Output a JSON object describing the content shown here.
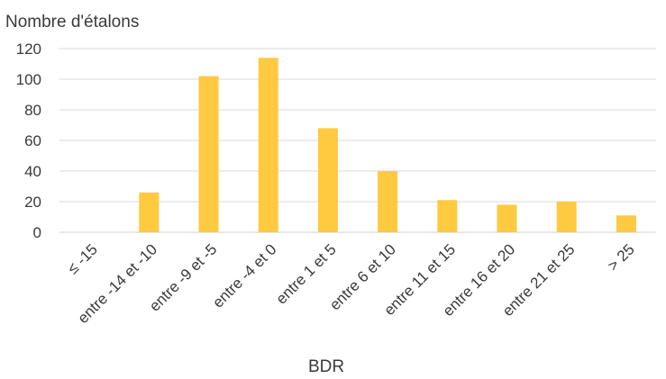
{
  "chart_data": {
    "type": "bar",
    "title": "",
    "ylabel": "Nombre d'étalons",
    "xlabel": "BDR",
    "ylim": [
      0,
      120
    ],
    "yticks": [
      0,
      20,
      40,
      60,
      80,
      100,
      120
    ],
    "grid": true,
    "bar_color": "#FFC940",
    "categories": [
      "≤ -15",
      "entre -14 et -10",
      "entre -9 et -5",
      "entre -4 et 0",
      "entre 1 et 5",
      "entre 6 et 10",
      "entre 11 et 15",
      "entre 16 et 20",
      "entre 21 et 25",
      "> 25"
    ],
    "values": [
      0,
      26,
      102,
      114,
      68,
      40,
      21,
      18,
      20,
      11
    ]
  }
}
